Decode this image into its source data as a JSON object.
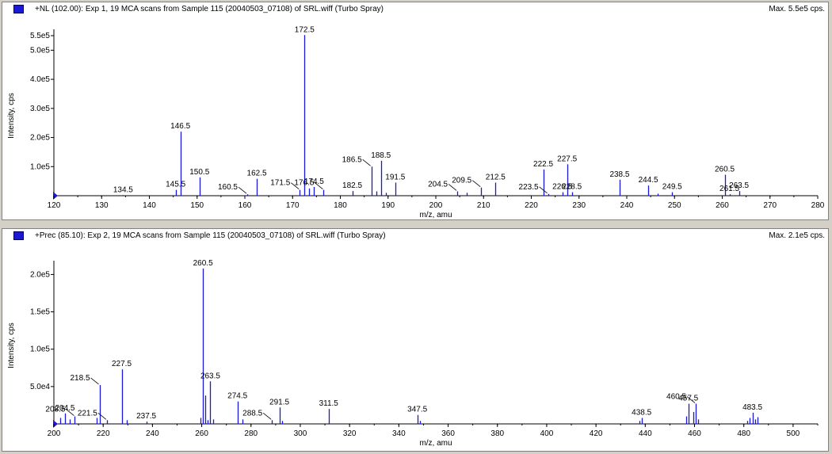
{
  "panes": [
    {
      "title": "+NL (102.00): Exp 1, 19 MCA scans from Sample 115 (20040503_07108) of SRL.wiff (Turbo Spray)",
      "max_label": "Max. 5.5e5 cps.",
      "accent": "#1a1ad6"
    },
    {
      "title": "+Prec (85.10): Exp 2, 19 MCA scans from Sample 115 (20040503_07108) of SRL.wiff (Turbo Spray)",
      "max_label": "Max. 2.1e5 cps.",
      "accent": "#1a1ad6"
    }
  ],
  "chart_data": [
    {
      "type": "bar",
      "xlabel": "m/z, amu",
      "ylabel": "Intensity, cps",
      "xlim": [
        120,
        280
      ],
      "ylim": [
        0,
        550000
      ],
      "x_ticks": [
        "120",
        "130",
        "140",
        "150",
        "160",
        "170",
        "180",
        "190",
        "200",
        "210",
        "220",
        "230",
        "240",
        "250",
        "260",
        "270",
        "280"
      ],
      "y_ticks": [
        {
          "value": 100000,
          "label": "1.0e5"
        },
        {
          "value": 200000,
          "label": "2.0e5"
        },
        {
          "value": 300000,
          "label": "3.0e5"
        },
        {
          "value": 400000,
          "label": "4.0e5"
        },
        {
          "value": 500000,
          "label": "5.0e5"
        },
        {
          "value": 550000,
          "label": "5.5e5"
        }
      ],
      "bar_color": "#1a1ad6",
      "peaks": [
        {
          "x": 134.5,
          "y": 2000
        },
        {
          "x": 145.5,
          "y": 20000
        },
        {
          "x": 146.5,
          "y": 220000
        },
        {
          "x": 150.5,
          "y": 63000
        },
        {
          "x": 160.5,
          "y": 5000
        },
        {
          "x": 162.5,
          "y": 58000
        },
        {
          "x": 171.5,
          "y": 20000
        },
        {
          "x": 172.5,
          "y": 552000
        },
        {
          "x": 173.5,
          "y": 25000
        },
        {
          "x": 174.5,
          "y": 30000
        },
        {
          "x": 176.5,
          "y": 20000
        },
        {
          "x": 182.5,
          "y": 16000
        },
        {
          "x": 186.5,
          "y": 100000
        },
        {
          "x": 187.5,
          "y": 15000
        },
        {
          "x": 188.5,
          "y": 120000
        },
        {
          "x": 189.5,
          "y": 10000
        },
        {
          "x": 191.5,
          "y": 45000
        },
        {
          "x": 204.5,
          "y": 15000
        },
        {
          "x": 206.5,
          "y": 10000
        },
        {
          "x": 209.5,
          "y": 28000
        },
        {
          "x": 212.5,
          "y": 45000
        },
        {
          "x": 222.5,
          "y": 90000
        },
        {
          "x": 223.5,
          "y": 6000
        },
        {
          "x": 226.5,
          "y": 12000
        },
        {
          "x": 227.5,
          "y": 108000
        },
        {
          "x": 228.5,
          "y": 12000
        },
        {
          "x": 238.5,
          "y": 55000
        },
        {
          "x": 244.5,
          "y": 35000
        },
        {
          "x": 246.5,
          "y": 7000
        },
        {
          "x": 249.5,
          "y": 12000
        },
        {
          "x": 260.5,
          "y": 72000
        },
        {
          "x": 261.5,
          "y": 5000
        },
        {
          "x": 263.5,
          "y": 16000
        }
      ],
      "labels": [
        {
          "text": "134.5",
          "x": 134.5,
          "y": 2000
        },
        {
          "text": "145.5",
          "x": 145.5,
          "y": 20000
        },
        {
          "text": "146.5",
          "x": 146.5,
          "y": 220000
        },
        {
          "text": "150.5",
          "x": 150.5,
          "y": 63000
        },
        {
          "text": "160.5",
          "x": 160.5,
          "y": 5000,
          "leader": true
        },
        {
          "text": "162.5",
          "x": 162.5,
          "y": 58000
        },
        {
          "text": "171.5",
          "x": 171.5,
          "y": 20000,
          "leader": true
        },
        {
          "text": "172.5",
          "x": 172.5,
          "y": 552000
        },
        {
          "text": "174.5",
          "x": 174.5,
          "y": 30000
        },
        {
          "text": "176.5",
          "x": 176.5,
          "y": 20000,
          "leader": true
        },
        {
          "text": "182.5",
          "x": 182.5,
          "y": 16000
        },
        {
          "text": "186.5",
          "x": 186.5,
          "y": 100000,
          "leader": true
        },
        {
          "text": "188.5",
          "x": 188.5,
          "y": 120000
        },
        {
          "text": "191.5",
          "x": 191.5,
          "y": 45000
        },
        {
          "text": "204.5",
          "x": 204.5,
          "y": 15000,
          "leader": true
        },
        {
          "text": "209.5",
          "x": 209.5,
          "y": 28000,
          "leader": true
        },
        {
          "text": "212.5",
          "x": 212.5,
          "y": 45000
        },
        {
          "text": "222.5",
          "x": 222.5,
          "y": 90000
        },
        {
          "text": "223.5",
          "x": 223.5,
          "y": 6000,
          "leader": true
        },
        {
          "text": "226.5",
          "x": 226.5,
          "y": 12000
        },
        {
          "text": "227.5",
          "x": 227.5,
          "y": 108000
        },
        {
          "text": "228.5",
          "x": 228.5,
          "y": 12000
        },
        {
          "text": "238.5",
          "x": 238.5,
          "y": 55000
        },
        {
          "text": "244.5",
          "x": 244.5,
          "y": 35000
        },
        {
          "text": "249.5",
          "x": 249.5,
          "y": 12000
        },
        {
          "text": "260.5",
          "x": 260.5,
          "y": 72000
        },
        {
          "text": "261.5",
          "x": 261.5,
          "y": 5000
        },
        {
          "text": "263.5",
          "x": 263.5,
          "y": 16000
        }
      ]
    },
    {
      "type": "bar",
      "xlabel": "m/z, amu",
      "ylabel": "Intensity, cps",
      "xlim": [
        200,
        510
      ],
      "ylim": [
        0,
        210000
      ],
      "x_ticks": [
        "200",
        "220",
        "240",
        "260",
        "280",
        "300",
        "320",
        "340",
        "360",
        "380",
        "400",
        "420",
        "440",
        "460",
        "480",
        "500"
      ],
      "y_ticks": [
        {
          "value": 50000,
          "label": "5.0e4"
        },
        {
          "value": 100000,
          "label": "1.0e5"
        },
        {
          "value": 150000,
          "label": "1.5e5"
        },
        {
          "value": 200000,
          "label": "2.0e5"
        }
      ],
      "bar_color": "#1a1ad6",
      "peaks": [
        {
          "x": 202.5,
          "y": 8000
        },
        {
          "x": 204.5,
          "y": 14000
        },
        {
          "x": 206.5,
          "y": 6000
        },
        {
          "x": 208.5,
          "y": 10000
        },
        {
          "x": 217.5,
          "y": 8000
        },
        {
          "x": 218.5,
          "y": 52000
        },
        {
          "x": 221.5,
          "y": 5000
        },
        {
          "x": 227.5,
          "y": 73000
        },
        {
          "x": 229.5,
          "y": 5000
        },
        {
          "x": 237.5,
          "y": 3000
        },
        {
          "x": 259.5,
          "y": 8000
        },
        {
          "x": 260.5,
          "y": 208000
        },
        {
          "x": 261.5,
          "y": 38000
        },
        {
          "x": 262.5,
          "y": 5000
        },
        {
          "x": 263.5,
          "y": 57000
        },
        {
          "x": 264.5,
          "y": 6000
        },
        {
          "x": 274.5,
          "y": 30000
        },
        {
          "x": 276.5,
          "y": 6000
        },
        {
          "x": 288.5,
          "y": 5000
        },
        {
          "x": 291.5,
          "y": 22000
        },
        {
          "x": 292.5,
          "y": 4000
        },
        {
          "x": 311.5,
          "y": 20000
        },
        {
          "x": 347.5,
          "y": 12000
        },
        {
          "x": 348.5,
          "y": 4000
        },
        {
          "x": 437.5,
          "y": 4000
        },
        {
          "x": 438.5,
          "y": 8000
        },
        {
          "x": 456.5,
          "y": 10000
        },
        {
          "x": 457.5,
          "y": 27000
        },
        {
          "x": 459.5,
          "y": 16000
        },
        {
          "x": 460.5,
          "y": 27000
        },
        {
          "x": 461.5,
          "y": 6000
        },
        {
          "x": 481.5,
          "y": 4000
        },
        {
          "x": 482.5,
          "y": 8000
        },
        {
          "x": 483.5,
          "y": 15000
        },
        {
          "x": 484.5,
          "y": 6000
        },
        {
          "x": 485.5,
          "y": 9000
        }
      ],
      "labels": [
        {
          "text": "204.5",
          "x": 204.5,
          "y": 14000
        },
        {
          "text": "208.5",
          "x": 208.5,
          "y": 10000,
          "leader": true
        },
        {
          "text": "218.5",
          "x": 218.5,
          "y": 52000,
          "leader": true
        },
        {
          "text": "221.5",
          "x": 221.5,
          "y": 5000,
          "leader": true
        },
        {
          "text": "227.5",
          "x": 227.5,
          "y": 73000
        },
        {
          "text": "237.5",
          "x": 237.5,
          "y": 3000
        },
        {
          "text": "260.5",
          "x": 260.5,
          "y": 208000
        },
        {
          "text": "263.5",
          "x": 263.5,
          "y": 57000
        },
        {
          "text": "274.5",
          "x": 274.5,
          "y": 30000
        },
        {
          "text": "288.5",
          "x": 288.5,
          "y": 5000,
          "leader": true
        },
        {
          "text": "291.5",
          "x": 291.5,
          "y": 22000
        },
        {
          "text": "311.5",
          "x": 311.5,
          "y": 20000
        },
        {
          "text": "347.5",
          "x": 347.5,
          "y": 12000
        },
        {
          "text": "438.5",
          "x": 438.5,
          "y": 8000
        },
        {
          "text": "457.5",
          "x": 457.5,
          "y": 27000
        },
        {
          "text": "460.5",
          "x": 460.5,
          "y": 27000,
          "leader": true
        },
        {
          "text": "483.5",
          "x": 483.5,
          "y": 15000
        }
      ]
    }
  ]
}
